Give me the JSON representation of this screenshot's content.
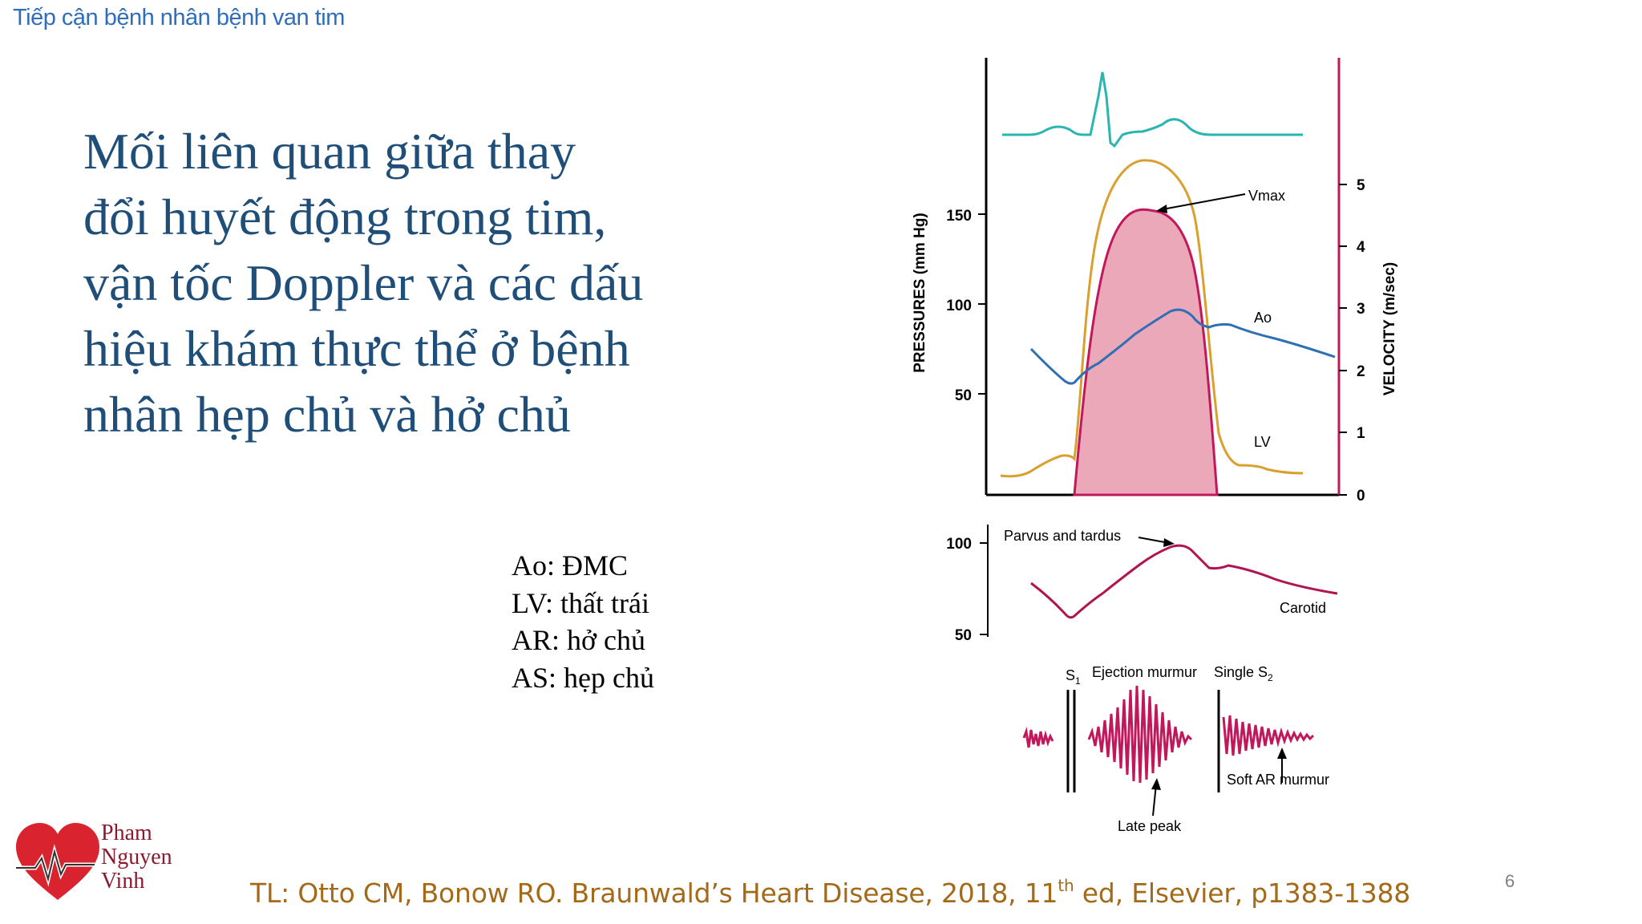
{
  "header": {
    "text": "Tiếp cận bệnh nhân bệnh van tim"
  },
  "title": {
    "lines": [
      "Mối liên quan giữa thay",
      "đổi huyết động trong tim,",
      "vận tốc Doppler và các dấu",
      "hiệu khám thực thể ở bệnh",
      "nhân hẹp chủ và hở chủ"
    ]
  },
  "legend": {
    "items": [
      "Ao: ĐMC",
      "LV: thất trái",
      "AR: hở chủ",
      "AS: hẹp chủ"
    ]
  },
  "figure": {
    "y_axis_left_label": "PRESSURES (mm Hg)",
    "y_axis_right_label": "VELOCITY (m/sec)",
    "left_ticks": [
      "150",
      "100",
      "50"
    ],
    "right_ticks": [
      "5",
      "4",
      "3",
      "2",
      "1",
      "0"
    ],
    "labels": {
      "vmax": "Vmax",
      "ao": "Ao",
      "lv": "LV",
      "parvus": "Parvus and tardus",
      "carotid": "Carotid",
      "s1": "S",
      "s1_sub": "1",
      "ejection": "Ejection murmur",
      "single_s2": "Single S",
      "s2_sub": "2",
      "soft_ar": "Soft AR murmur",
      "late_peak": "Late peak"
    },
    "carotid_ticks": [
      "100",
      "50"
    ],
    "colors": {
      "ecg": "#2ab5b0",
      "lv": "#d9a030",
      "ao": "#2e6fb5",
      "velocity": "#c2185b",
      "velocity_fill": "#eba8b8",
      "carotid": "#b0154f",
      "murmur": "#c2185b"
    }
  },
  "logo": {
    "lines": [
      "Pham",
      "Nguyen",
      "Vinh"
    ]
  },
  "reference": {
    "prefix": "TL: Otto CM, Bonow RO. Braunwald’s Heart Disease, 2018, 11",
    "sup": "th",
    "suffix": " ed, Elsevier, p1383-1388"
  },
  "page_number": "6"
}
